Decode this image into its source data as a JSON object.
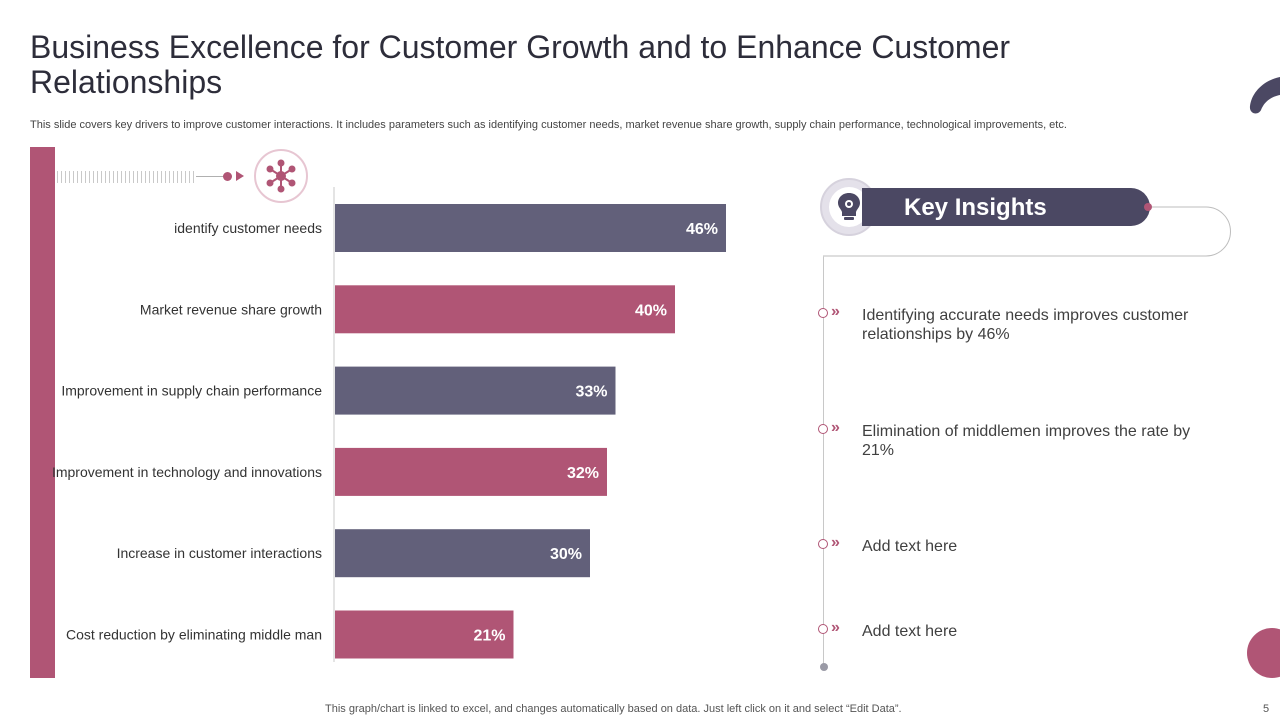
{
  "title": "Business Excellence for Customer Growth and to Enhance Customer Relationships",
  "subtitle": "This slide covers key drivers to improve customer interactions. It includes parameters such as identifying customer needs, market revenue share growth, supply chain performance, technological improvements, etc.",
  "colors": {
    "plum": "#b05575",
    "slate": "#62607a",
    "dark": "#4b4863"
  },
  "chart_data": {
    "type": "bar",
    "orientation": "horizontal",
    "categories": [
      "identify customer needs",
      "Market revenue share growth",
      "Improvement in supply chain performance",
      "Improvement in technology and innovations",
      "Increase in customer interactions",
      "Cost reduction by eliminating middle man"
    ],
    "values": [
      46,
      40,
      33,
      32,
      30,
      21
    ],
    "labels": [
      "46%",
      "40%",
      "33%",
      "32%",
      "30%",
      "21%"
    ],
    "bar_colors": [
      "#62607a",
      "#b05575",
      "#62607a",
      "#b05575",
      "#62607a",
      "#b05575"
    ],
    "xlim": [
      0,
      100
    ],
    "title": "",
    "xlabel": "",
    "ylabel": ""
  },
  "insights": {
    "heading": "Key Insights",
    "items": [
      "Identifying  accurate needs improves customer relationships by  46%",
      "Elimination of middlemen improves the rate by 21%",
      "Add text here",
      "Add text here"
    ]
  },
  "footer": "This graph/chart is linked to excel,  and changes automatically based on data. Just left click on it and select “Edit Data”.",
  "page_number": "5"
}
